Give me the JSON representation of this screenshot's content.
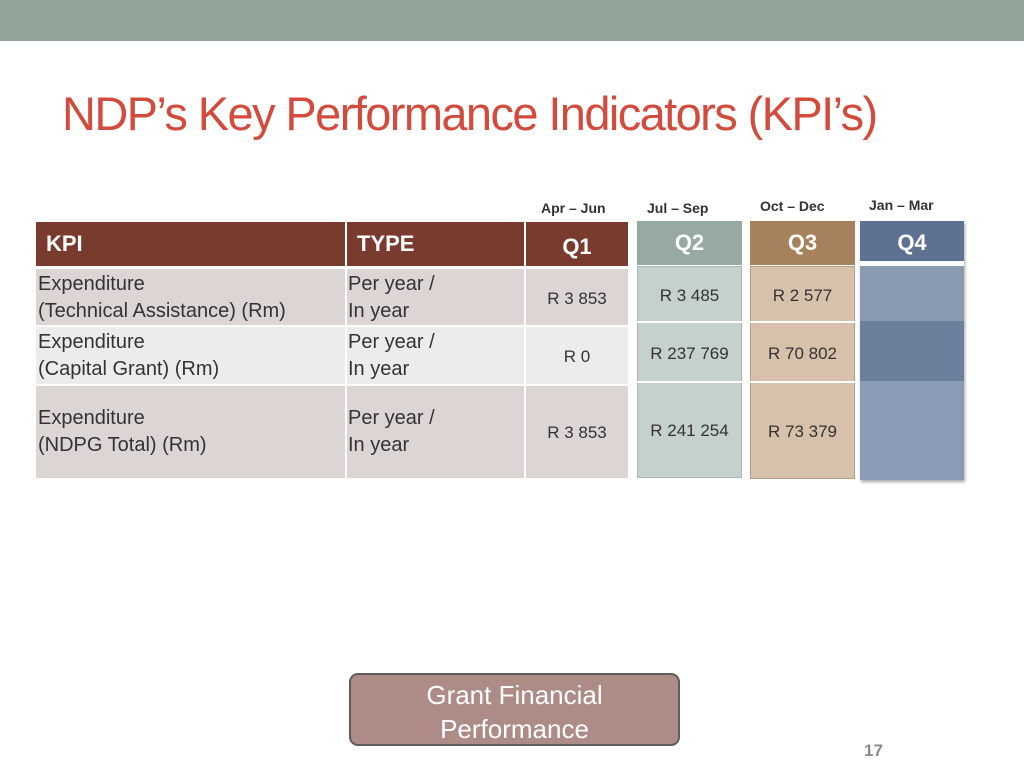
{
  "title": "NDP’s Key Performance Indicators (KPI’s)",
  "periods": [
    "Apr – Jun",
    "Jul – Sep",
    "Oct – Dec",
    "Jan – Mar"
  ],
  "table": {
    "headers": {
      "kpi": "KPI",
      "type": "TYPE"
    },
    "rows": [
      {
        "kpi_line1": "Expenditure",
        "kpi_line2": "(Technical Assistance) (Rm)",
        "type_line1": "Per year /",
        "type_line2": "In year"
      },
      {
        "kpi_line1": "Expenditure",
        "kpi_line2": "(Capital Grant) (Rm)",
        "type_line1": "Per year /",
        "type_line2": "In year"
      },
      {
        "kpi_line1": "Expenditure",
        "kpi_line2": "(NDPG Total) (Rm)",
        "type_line1": "Per year /",
        "type_line2": "In year"
      }
    ]
  },
  "quarters": [
    {
      "label": "Q1",
      "values": [
        "R 3 853",
        "R 0",
        "R 3 853"
      ]
    },
    {
      "label": "Q2",
      "values": [
        "R 3 485",
        "R 237 769",
        "R 241 254"
      ]
    },
    {
      "label": "Q3",
      "values": [
        "R 2 577",
        "R 70 802",
        "R 73 379"
      ]
    },
    {
      "label": "Q4",
      "values": [
        "",
        "",
        ""
      ]
    }
  ],
  "button_label": "Grant Financial Performance",
  "page_number": "17",
  "colors": {
    "title": "#d24b3c",
    "top_bar": "#92a39a",
    "header_brown": "#7a3b2f",
    "q2": "#96aaa2",
    "q3": "#a7805c",
    "q4": "#5f7193",
    "button": "#ad8b86"
  }
}
